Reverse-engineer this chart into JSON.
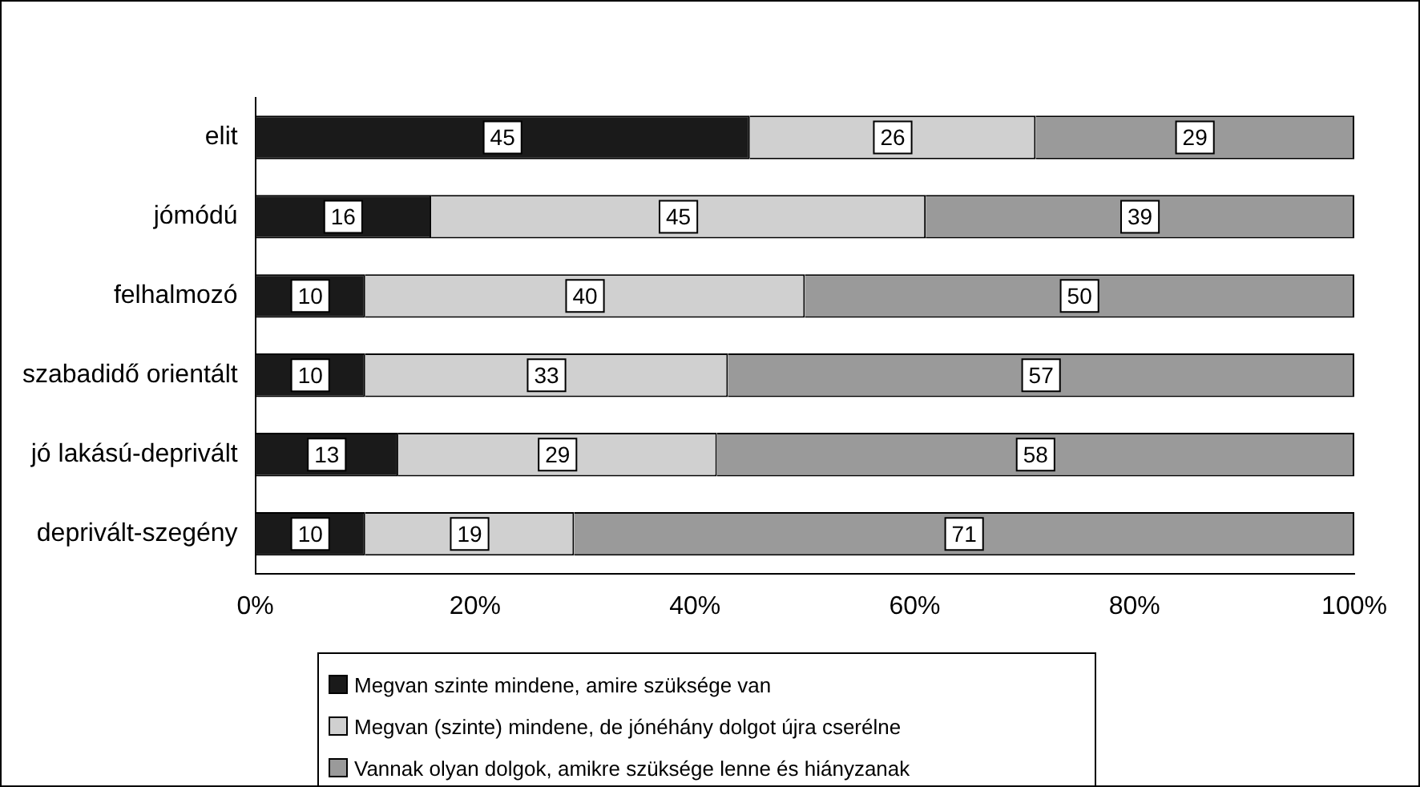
{
  "chart_data": {
    "type": "bar",
    "orientation": "horizontal",
    "stacked": true,
    "categories": [
      "elit",
      "jómódú",
      "felhalmozó",
      "szabadidő orientált",
      "jó lakású-deprivált",
      "deprivált-szegény"
    ],
    "series": [
      {
        "name": "Megvan szinte mindene, amire szüksége van",
        "color": "#1a1a1a",
        "values": [
          45,
          16,
          10,
          10,
          13,
          10
        ]
      },
      {
        "name": "Megvan (szinte) mindene, de jónéhány dolgot újra cserélne",
        "color": "#d0d0d0",
        "values": [
          26,
          45,
          40,
          33,
          29,
          19
        ]
      },
      {
        "name": "Vannak olyan dolgok, amikre szüksége lenne és hiányzanak",
        "color": "#9a9a9a",
        "values": [
          29,
          39,
          50,
          57,
          58,
          71
        ]
      }
    ],
    "xlim": [
      0,
      100
    ],
    "xticks": [
      {
        "value": 0,
        "label": "0%"
      },
      {
        "value": 20,
        "label": "20%"
      },
      {
        "value": 40,
        "label": "40%"
      },
      {
        "value": 60,
        "label": "60%"
      },
      {
        "value": 80,
        "label": "80%"
      },
      {
        "value": 100,
        "label": "100%"
      }
    ],
    "grid": false,
    "legend": "bottom",
    "data_labels": true
  }
}
